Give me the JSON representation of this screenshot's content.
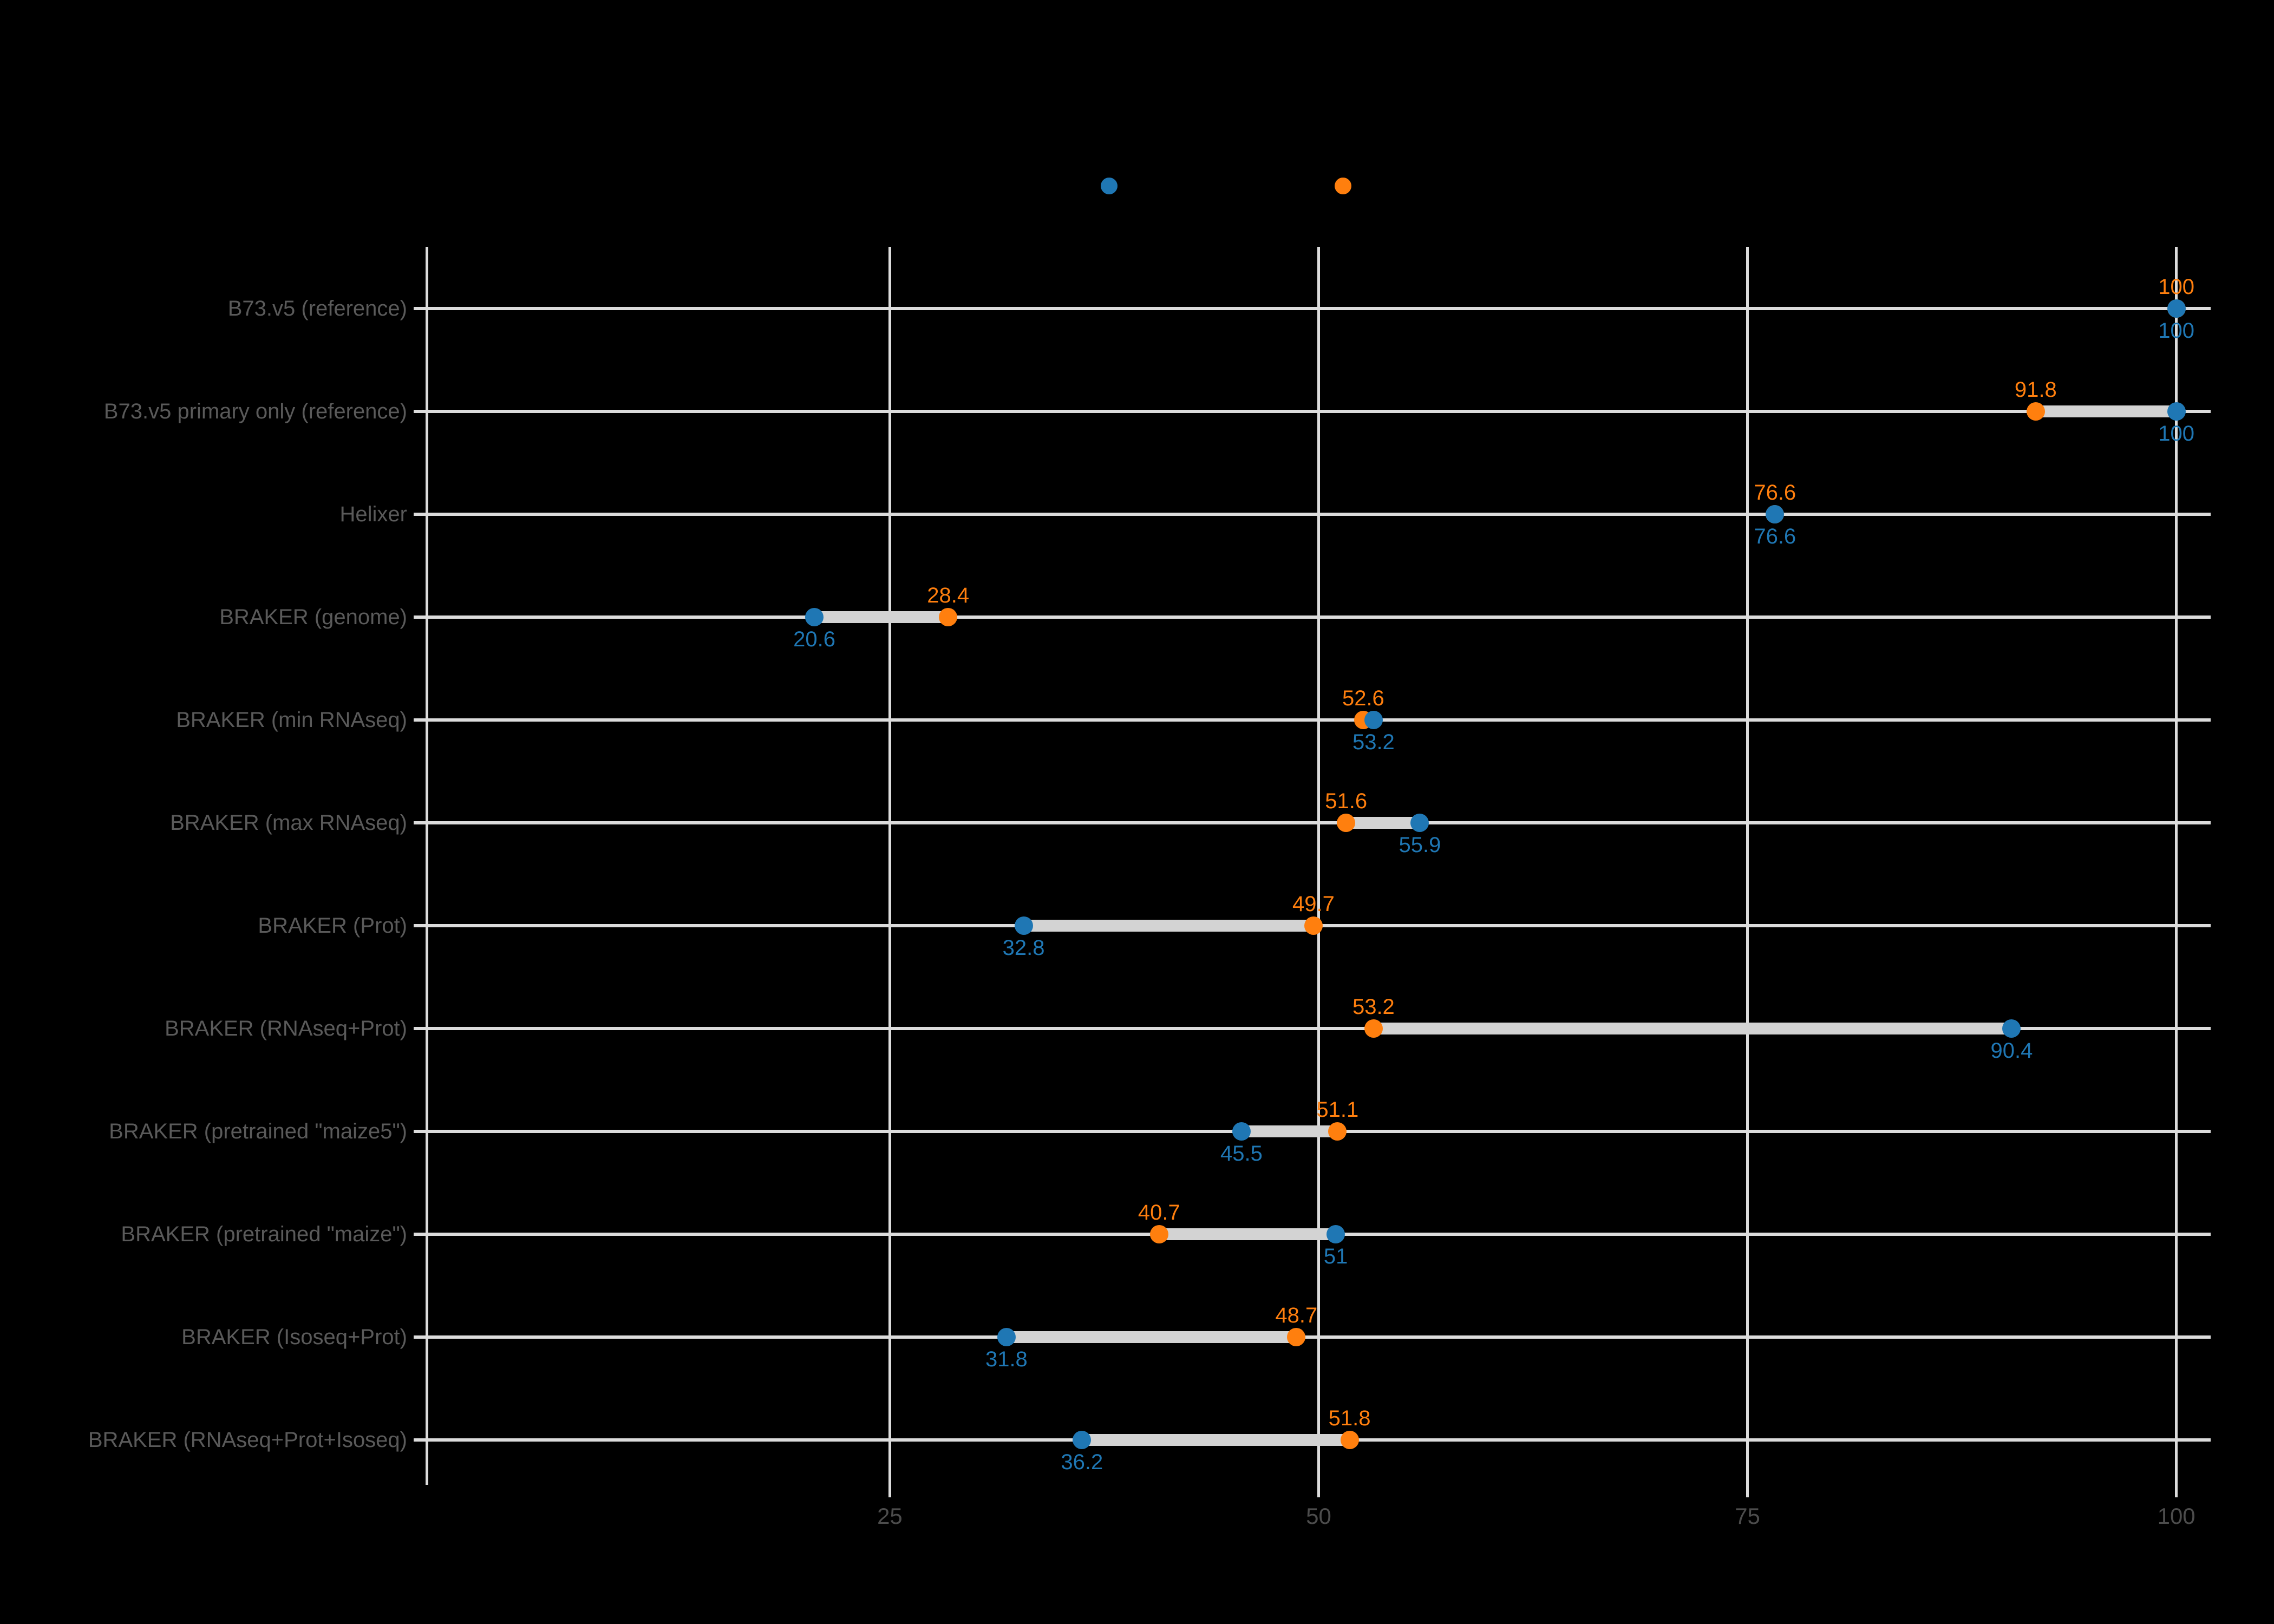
{
  "chart_data": {
    "type": "dumbbell",
    "title": "",
    "orientation": "horizontal",
    "grid": "on",
    "background_color": "#000000",
    "gridline_color": "#dcdcdc",
    "connector_color": "#d3d3d3",
    "category_label_color": "#5a5a5a",
    "tick_label_color": "#4c4c4c",
    "categories": [
      "B73.v5 (reference)",
      "B73.v5 primary only (reference)",
      "Helixer",
      "BRAKER (genome)",
      "BRAKER (min RNAseq)",
      "BRAKER (max RNAseq)",
      "BRAKER (Prot)",
      "BRAKER (RNAseq+Prot)",
      "BRAKER (pretrained \"maize5\")",
      "BRAKER (pretrained \"maize\")",
      "BRAKER (Isoseq+Prot)",
      "BRAKER (RNAseq+Prot+Isoseq)"
    ],
    "series": [
      {
        "name": "orange-series",
        "color": "#ff7f0e",
        "label_position": "above",
        "values": [
          100,
          91.8,
          76.6,
          28.4,
          52.6,
          51.6,
          49.7,
          53.2,
          51.1,
          40.7,
          48.7,
          51.8
        ],
        "labels": [
          "100",
          "91.8",
          "76.6",
          "28.4",
          "52.6",
          "51.6",
          "49.7",
          "53.2",
          "51.1",
          "40.7",
          "48.7",
          "51.8"
        ]
      },
      {
        "name": "blue-series",
        "color": "#1f77b4",
        "label_position": "below",
        "values": [
          100,
          100,
          76.6,
          20.6,
          53.2,
          55.9,
          32.8,
          90.4,
          45.5,
          51,
          31.8,
          36.2
        ],
        "labels": [
          "100",
          "100",
          "76.6",
          "20.6",
          "53.2",
          "55.9",
          "32.8",
          "90.4",
          "45.5",
          "51",
          "31.8",
          "36.2"
        ]
      }
    ],
    "x_ticks": [
      {
        "value": 25,
        "label": "25"
      },
      {
        "value": 50,
        "label": "50"
      },
      {
        "value": 75,
        "label": "75"
      },
      {
        "value": 100,
        "label": "100"
      }
    ],
    "xlim": [
      -2,
      102
    ],
    "xlabel": "",
    "ylabel": "",
    "legend": {
      "position": "top",
      "markers": [
        {
          "name": "blue-marker",
          "color": "#1f77b4"
        },
        {
          "name": "orange-marker",
          "color": "#ff7f0e"
        }
      ]
    }
  }
}
